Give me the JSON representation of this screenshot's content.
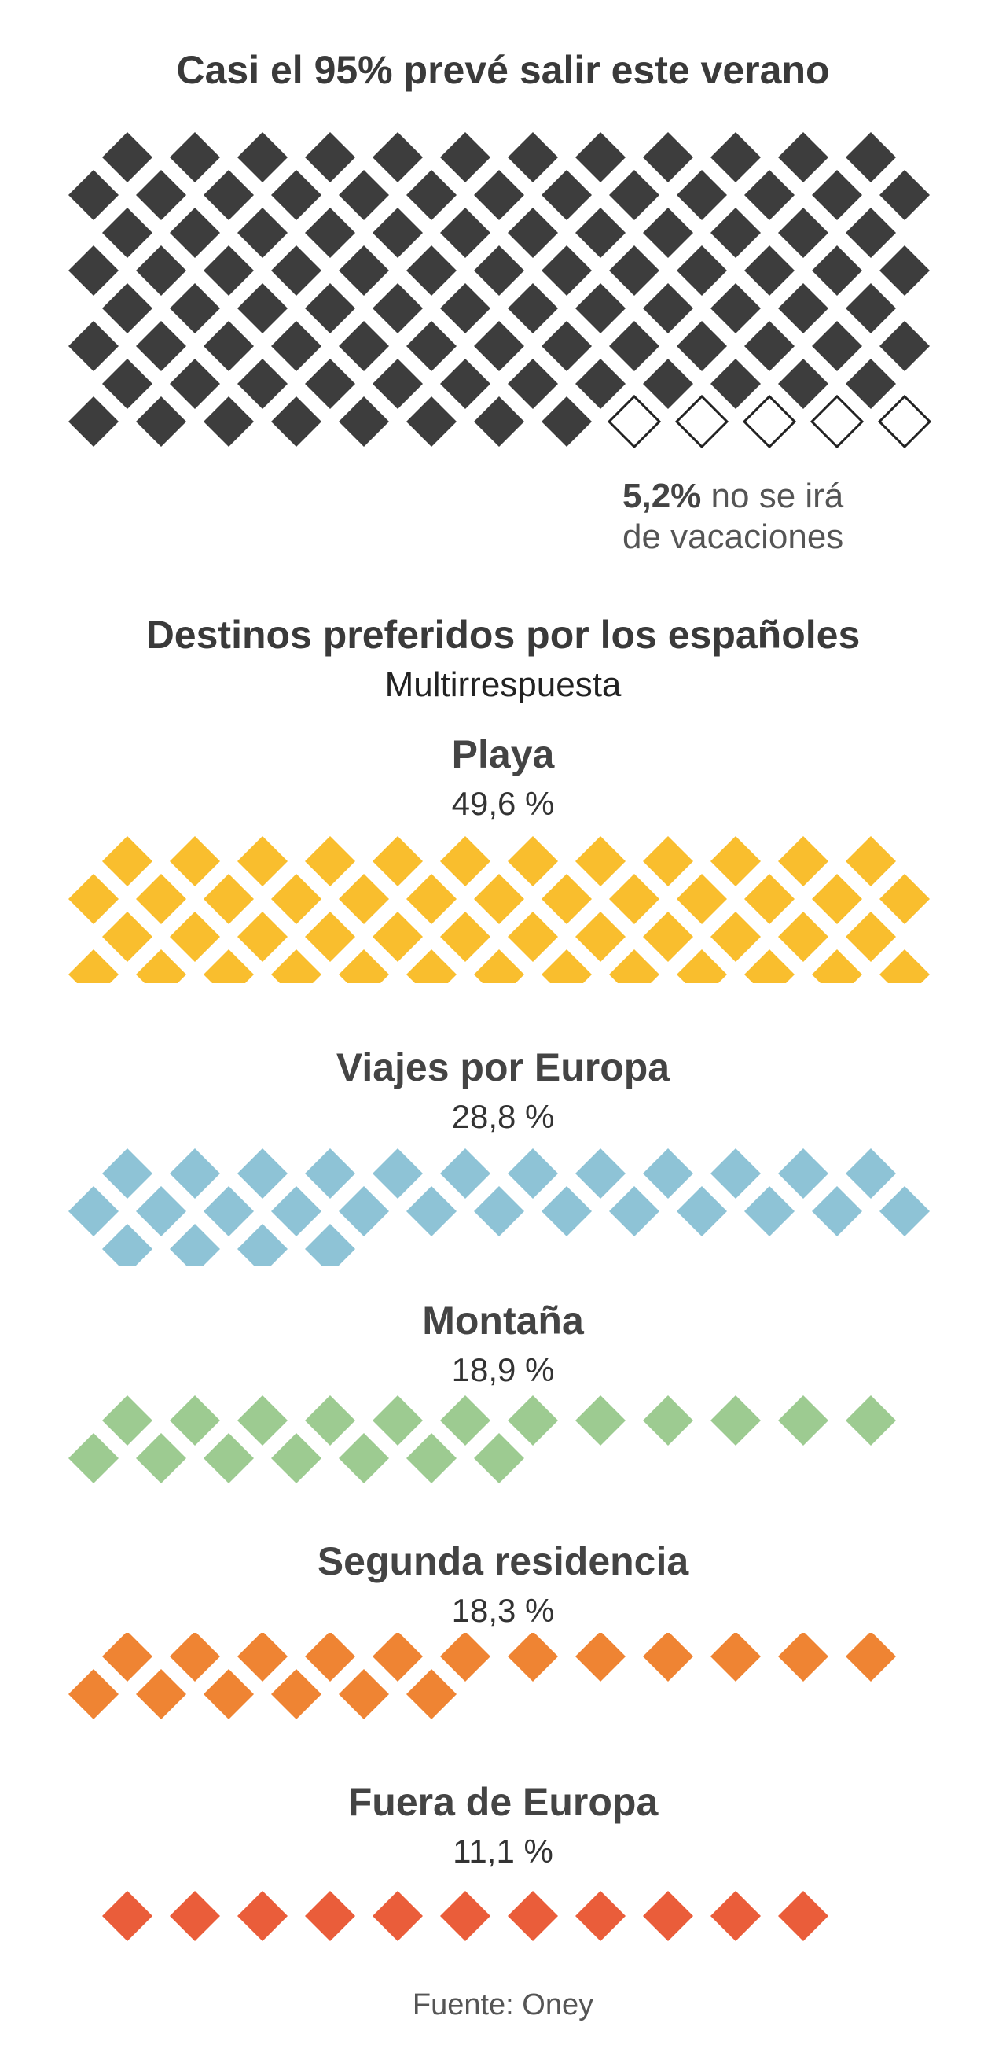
{
  "headline": "Casi el 95% prevé salir este verano",
  "note": {
    "value": "5,2%",
    "text_line1": " no se irá",
    "text_line2": "de vacaciones"
  },
  "section": {
    "title": "Destinos preferidos por los españoles",
    "subtitle": "Multirrespuesta"
  },
  "source": "Fuente: Oney",
  "colors": {
    "travel": "#3d3d3d",
    "playa": "#f9be2e",
    "europa": "#8ec3d6",
    "montana": "#9dcb91",
    "segunda": "#ef8433",
    "fuera": "#ea5d3a"
  },
  "chart_data": [
    {
      "type": "waffle",
      "title": "Casi el 95% prevé salir este verano",
      "categories": [
        "Sale de vacaciones",
        "No se irá de vacaciones"
      ],
      "values": [
        94.8,
        5.2
      ],
      "units_total": 100,
      "units": [
        95,
        5
      ],
      "annotation": "5,2% no se irá de vacaciones"
    },
    {
      "type": "waffle",
      "title": "Destinos preferidos por los españoles",
      "subtitle": "Multirrespuesta",
      "categories": [
        "Playa",
        "Viajes por Europa",
        "Montaña",
        "Segunda residencia",
        "Fuera de Europa"
      ],
      "values": [
        49.6,
        28.8,
        18.9,
        18.3,
        11.1
      ],
      "labels": [
        "49,6 %",
        "28,8 %",
        "18,9 %",
        "18,3 %",
        "11,1 %"
      ],
      "units": [
        50,
        29,
        19,
        18,
        11
      ]
    }
  ],
  "categories": [
    {
      "name": "Playa",
      "pct": "49,6 %"
    },
    {
      "name": "Viajes por Europa",
      "pct": "28,8 %"
    },
    {
      "name": "Montaña",
      "pct": "18,9 %"
    },
    {
      "name": "Segunda residencia",
      "pct": "18,3 %"
    },
    {
      "name": "Fuera de Europa",
      "pct": "11,1 %"
    }
  ]
}
